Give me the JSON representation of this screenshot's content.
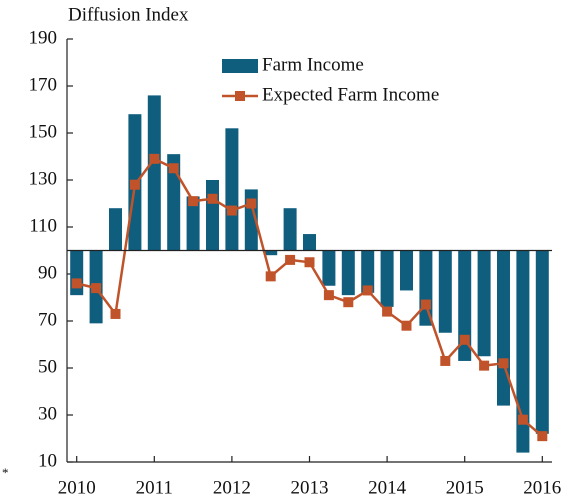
{
  "chart_data": {
    "type": "bar+line",
    "y_label": "Diffusion Index",
    "footnote": "*",
    "categories": [
      "2010",
      null,
      null,
      null,
      "2011",
      null,
      null,
      null,
      "2012",
      null,
      null,
      null,
      "2013",
      null,
      null,
      null,
      "2014",
      null,
      null,
      null,
      "2015",
      null,
      null,
      null,
      "2016"
    ],
    "series": [
      {
        "name": "Farm Income",
        "type": "bar",
        "color": "#0f5e7e",
        "values": [
          81,
          69,
          118,
          158,
          166,
          141,
          123,
          130,
          152,
          126,
          98,
          118,
          107,
          85,
          81,
          82,
          76,
          83,
          68,
          65,
          53,
          55,
          34,
          14,
          22
        ]
      },
      {
        "name": "Expected Farm Income",
        "type": "line",
        "color": "#c0532a",
        "values": [
          86,
          84,
          73,
          128,
          139,
          135,
          121,
          122,
          117,
          120,
          89,
          96,
          95,
          81,
          78,
          83,
          74,
          68,
          77,
          53,
          62,
          51,
          52,
          28,
          21
        ]
      }
    ],
    "baseline": 100,
    "ylim": [
      10,
      190
    ],
    "yticks": [
      10,
      30,
      50,
      70,
      90,
      110,
      130,
      150,
      170,
      190
    ],
    "grid": false,
    "legend": "top-right"
  }
}
